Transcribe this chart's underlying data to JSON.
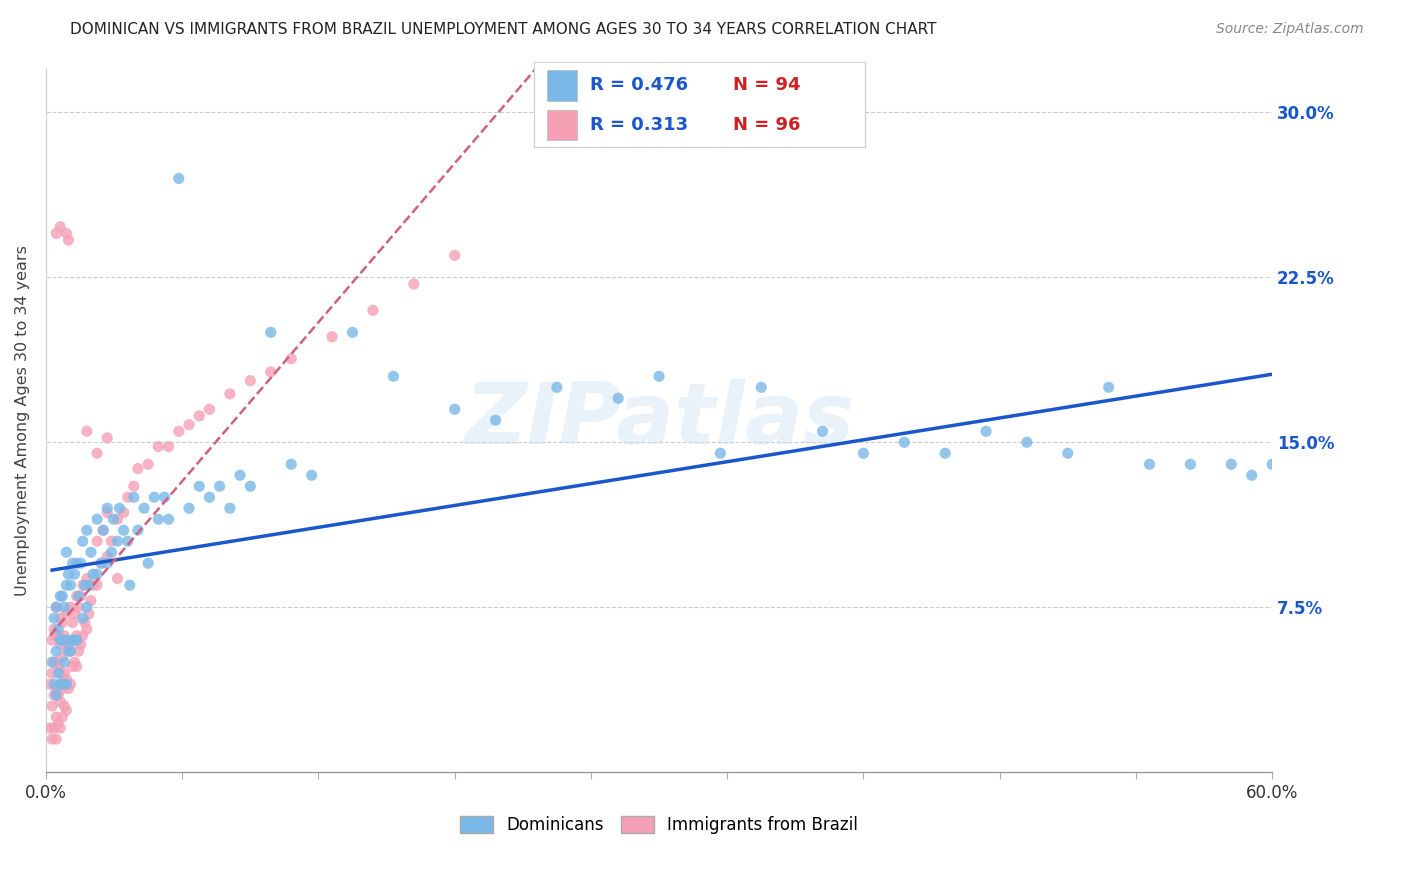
{
  "title": "DOMINICAN VS IMMIGRANTS FROM BRAZIL UNEMPLOYMENT AMONG AGES 30 TO 34 YEARS CORRELATION CHART",
  "source": "Source: ZipAtlas.com",
  "ylabel": "Unemployment Among Ages 30 to 34 years",
  "xlim": [
    0.0,
    0.6
  ],
  "ylim": [
    0.0,
    0.32
  ],
  "yticks": [
    0.075,
    0.15,
    0.225,
    0.3
  ],
  "ytick_labels": [
    "7.5%",
    "15.0%",
    "22.5%",
    "30.0%"
  ],
  "legend_r1_val": "0.476",
  "legend_n1_val": "94",
  "legend_r2_val": "0.313",
  "legend_n2_val": "96",
  "dominican_color": "#7ab8e8",
  "brazil_color": "#f5a0b5",
  "dominican_line_color": "#1a56cc",
  "brazil_line_color": "#d06080",
  "r_text_color": "#1a56cc",
  "n_text_color": "#cc2222",
  "watermark": "ZIPatlas",
  "background_color": "#ffffff",
  "grid_color": "#cccccc",
  "dominican_scatter_x": [
    0.003,
    0.004,
    0.004,
    0.005,
    0.005,
    0.005,
    0.006,
    0.006,
    0.007,
    0.007,
    0.007,
    0.008,
    0.008,
    0.008,
    0.009,
    0.009,
    0.01,
    0.01,
    0.01,
    0.01,
    0.011,
    0.011,
    0.012,
    0.012,
    0.013,
    0.013,
    0.014,
    0.014,
    0.015,
    0.015,
    0.016,
    0.017,
    0.018,
    0.018,
    0.019,
    0.02,
    0.02,
    0.021,
    0.022,
    0.023,
    0.025,
    0.025,
    0.027,
    0.028,
    0.03,
    0.03,
    0.032,
    0.033,
    0.035,
    0.036,
    0.038,
    0.04,
    0.041,
    0.043,
    0.045,
    0.048,
    0.05,
    0.053,
    0.055,
    0.058,
    0.06,
    0.065,
    0.07,
    0.075,
    0.08,
    0.085,
    0.09,
    0.095,
    0.1,
    0.11,
    0.12,
    0.13,
    0.15,
    0.17,
    0.2,
    0.22,
    0.25,
    0.28,
    0.3,
    0.33,
    0.35,
    0.38,
    0.4,
    0.42,
    0.44,
    0.46,
    0.48,
    0.5,
    0.52,
    0.54,
    0.56,
    0.58,
    0.59,
    0.6
  ],
  "dominican_scatter_y": [
    0.05,
    0.04,
    0.07,
    0.035,
    0.055,
    0.075,
    0.045,
    0.065,
    0.04,
    0.06,
    0.08,
    0.04,
    0.06,
    0.08,
    0.05,
    0.075,
    0.04,
    0.06,
    0.085,
    0.1,
    0.055,
    0.09,
    0.055,
    0.085,
    0.06,
    0.095,
    0.06,
    0.09,
    0.06,
    0.095,
    0.08,
    0.095,
    0.07,
    0.105,
    0.085,
    0.075,
    0.11,
    0.085,
    0.1,
    0.09,
    0.09,
    0.115,
    0.095,
    0.11,
    0.095,
    0.12,
    0.1,
    0.115,
    0.105,
    0.12,
    0.11,
    0.105,
    0.085,
    0.125,
    0.11,
    0.12,
    0.095,
    0.125,
    0.115,
    0.125,
    0.115,
    0.27,
    0.12,
    0.13,
    0.125,
    0.13,
    0.12,
    0.135,
    0.13,
    0.2,
    0.14,
    0.135,
    0.2,
    0.18,
    0.165,
    0.16,
    0.175,
    0.17,
    0.18,
    0.145,
    0.175,
    0.155,
    0.145,
    0.15,
    0.145,
    0.155,
    0.15,
    0.145,
    0.175,
    0.14,
    0.14,
    0.14,
    0.135,
    0.14
  ],
  "brazil_scatter_x": [
    0.002,
    0.002,
    0.003,
    0.003,
    0.003,
    0.003,
    0.004,
    0.004,
    0.004,
    0.004,
    0.005,
    0.005,
    0.005,
    0.005,
    0.005,
    0.005,
    0.006,
    0.006,
    0.006,
    0.006,
    0.007,
    0.007,
    0.007,
    0.007,
    0.007,
    0.008,
    0.008,
    0.008,
    0.008,
    0.009,
    0.009,
    0.009,
    0.01,
    0.01,
    0.01,
    0.01,
    0.011,
    0.011,
    0.012,
    0.012,
    0.012,
    0.013,
    0.013,
    0.014,
    0.014,
    0.015,
    0.015,
    0.015,
    0.016,
    0.016,
    0.017,
    0.017,
    0.018,
    0.018,
    0.019,
    0.02,
    0.02,
    0.021,
    0.022,
    0.023,
    0.025,
    0.025,
    0.027,
    0.028,
    0.03,
    0.03,
    0.032,
    0.035,
    0.038,
    0.04,
    0.043,
    0.045,
    0.05,
    0.055,
    0.06,
    0.065,
    0.07,
    0.075,
    0.08,
    0.09,
    0.1,
    0.11,
    0.12,
    0.14,
    0.16,
    0.18,
    0.2,
    0.01,
    0.011,
    0.015,
    0.02,
    0.025,
    0.03,
    0.035,
    0.005,
    0.007
  ],
  "brazil_scatter_y": [
    0.02,
    0.04,
    0.015,
    0.03,
    0.045,
    0.06,
    0.02,
    0.035,
    0.05,
    0.065,
    0.015,
    0.025,
    0.038,
    0.05,
    0.062,
    0.075,
    0.022,
    0.035,
    0.048,
    0.062,
    0.02,
    0.032,
    0.045,
    0.058,
    0.07,
    0.025,
    0.038,
    0.052,
    0.068,
    0.03,
    0.045,
    0.062,
    0.028,
    0.042,
    0.056,
    0.072,
    0.038,
    0.058,
    0.04,
    0.055,
    0.075,
    0.048,
    0.068,
    0.05,
    0.072,
    0.048,
    0.062,
    0.08,
    0.055,
    0.075,
    0.058,
    0.08,
    0.062,
    0.085,
    0.068,
    0.065,
    0.088,
    0.072,
    0.078,
    0.085,
    0.085,
    0.105,
    0.095,
    0.11,
    0.098,
    0.118,
    0.105,
    0.115,
    0.118,
    0.125,
    0.13,
    0.138,
    0.14,
    0.148,
    0.148,
    0.155,
    0.158,
    0.162,
    0.165,
    0.172,
    0.178,
    0.182,
    0.188,
    0.198,
    0.21,
    0.222,
    0.235,
    0.245,
    0.242,
    0.06,
    0.155,
    0.145,
    0.152,
    0.088,
    0.245,
    0.248
  ]
}
